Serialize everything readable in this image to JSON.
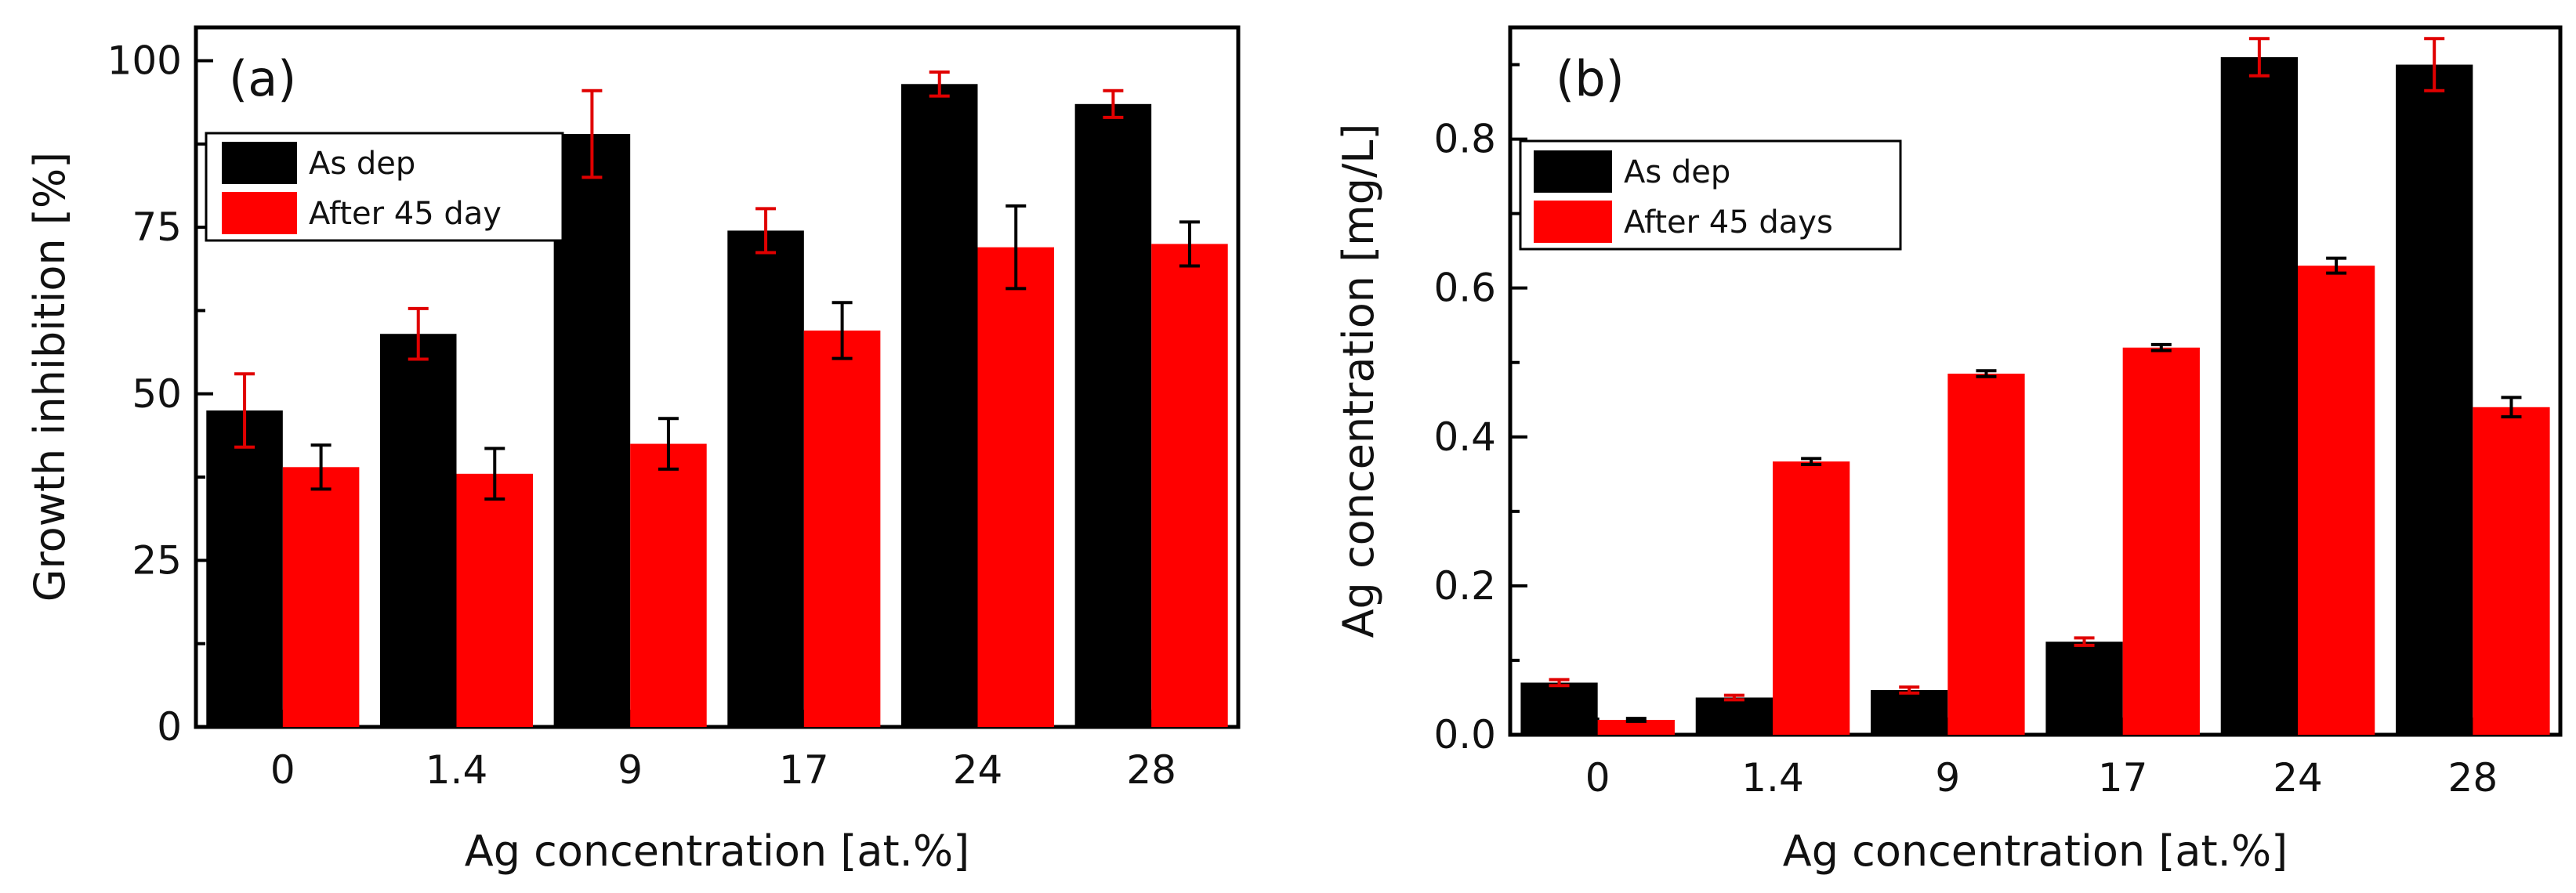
{
  "chart_data": [
    {
      "type": "bar",
      "panel_label": "(a)",
      "categories": [
        "0",
        "1.4",
        "9",
        "17",
        "24",
        "28"
      ],
      "series": [
        {
          "name": "As dep",
          "color": "#000000",
          "error_color": "#e00000",
          "values": [
            47.5,
            59,
            89,
            74.5,
            96.5,
            93.5
          ],
          "errors": [
            5.5,
            3.8,
            6.5,
            3.3,
            1.8,
            2.0
          ]
        },
        {
          "name": "After 45 day",
          "color": "#ff0000",
          "error_color": "#000000",
          "values": [
            39,
            38,
            42.5,
            59.5,
            72,
            72.5
          ],
          "errors": [
            3.3,
            3.8,
            3.8,
            4.2,
            6.2,
            3.3
          ]
        }
      ],
      "xlabel": "Ag concentration [at.%]",
      "ylabel": "Growth inhibition [%]",
      "ylim": [
        0,
        105
      ],
      "yticks": [
        0,
        25,
        50,
        75,
        100
      ],
      "ytick_labels": [
        "0",
        "25",
        "50",
        "75",
        "100"
      ],
      "grid": false,
      "legend_position": "top-left"
    },
    {
      "type": "bar",
      "panel_label": "(b)",
      "categories": [
        "0",
        "1.4",
        "9",
        "17",
        "24",
        "28"
      ],
      "series": [
        {
          "name": "As dep",
          "color": "#000000",
          "error_color": "#e00000",
          "values": [
            0.07,
            0.05,
            0.06,
            0.125,
            0.91,
            0.9
          ],
          "errors": [
            0.004,
            0.003,
            0.004,
            0.005,
            0.025,
            0.035
          ]
        },
        {
          "name": "After 45 days",
          "color": "#ff0000",
          "error_color": "#000000",
          "values": [
            0.02,
            0.367,
            0.485,
            0.52,
            0.63,
            0.44
          ],
          "errors": [
            0.002,
            0.004,
            0.004,
            0.004,
            0.01,
            0.013
          ]
        }
      ],
      "xlabel": "Ag concentration [at.%]",
      "ylabel": "Ag concentration [mg/L]",
      "ylim": [
        0,
        0.95
      ],
      "yticks": [
        0.0,
        0.2,
        0.4,
        0.6,
        0.8
      ],
      "ytick_labels": [
        "0.0",
        "0.2",
        "0.4",
        "0.6",
        "0.8"
      ],
      "grid": false,
      "legend_position": "top-left"
    }
  ]
}
